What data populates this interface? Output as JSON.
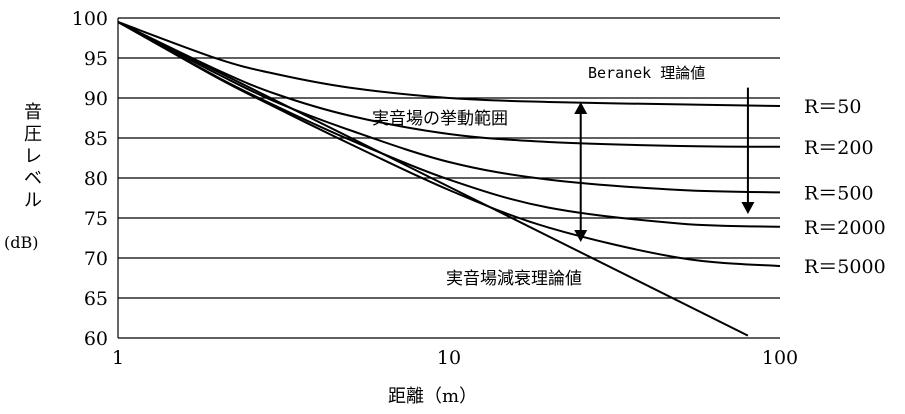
{
  "chart_data": {
    "type": "line",
    "x_scale": "log",
    "xlim": [
      1,
      100
    ],
    "ylim": [
      60,
      100
    ],
    "x_ticks": [
      "1",
      "10",
      "100"
    ],
    "y_ticks": [
      "60",
      "65",
      "70",
      "75",
      "80",
      "85",
      "90",
      "95",
      "100"
    ],
    "grid": "horizontal",
    "xlabel": "距離（m）",
    "ylabel_chars": [
      "音",
      "圧",
      "レ",
      "ベ",
      "ル"
    ],
    "ylabel_unit": "(dB)",
    "series": [
      {
        "name": "R＝50",
        "x": [
          1,
          2,
          3,
          5,
          10,
          20,
          50,
          100
        ],
        "y": [
          99.5,
          94.9,
          93.0,
          91.3,
          90.0,
          89.5,
          89.2,
          89.0
        ]
      },
      {
        "name": "R＝200",
        "x": [
          1,
          2,
          3,
          5,
          10,
          20,
          50,
          100
        ],
        "y": [
          99.5,
          93.5,
          90.5,
          87.8,
          85.5,
          84.5,
          84.0,
          83.9
        ]
      },
      {
        "name": "R＝500",
        "x": [
          1,
          2,
          3,
          5,
          10,
          20,
          50,
          100
        ],
        "y": [
          99.5,
          93.0,
          89.5,
          86.0,
          82.0,
          79.8,
          78.5,
          78.2
        ]
      },
      {
        "name": "R＝2000",
        "x": [
          1,
          2,
          3,
          5,
          10,
          20,
          50,
          100
        ],
        "y": [
          99.5,
          92.6,
          89.0,
          84.8,
          79.8,
          76.3,
          74.3,
          73.9
        ]
      },
      {
        "name": "R＝5000",
        "x": [
          1,
          2,
          3,
          5,
          10,
          20,
          50,
          100
        ],
        "y": [
          99.5,
          92.5,
          88.8,
          84.3,
          78.5,
          73.8,
          70.0,
          69.0
        ]
      },
      {
        "name": "実音場減衰理論値",
        "x": [
          1,
          80
        ],
        "y": [
          99.5,
          60.3
        ]
      }
    ],
    "annotations": {
      "range_label": "実音場の挙動範囲",
      "beranek_label": "Beranek 理論値",
      "decay_label": "実音場減衰理論値"
    },
    "range_arrow": {
      "x": 25,
      "y_top": 89.5,
      "y_bottom": 72
    },
    "beranek_arrow": {
      "x": 80,
      "y_top": 91.3,
      "y_bottom": 75.5
    }
  }
}
